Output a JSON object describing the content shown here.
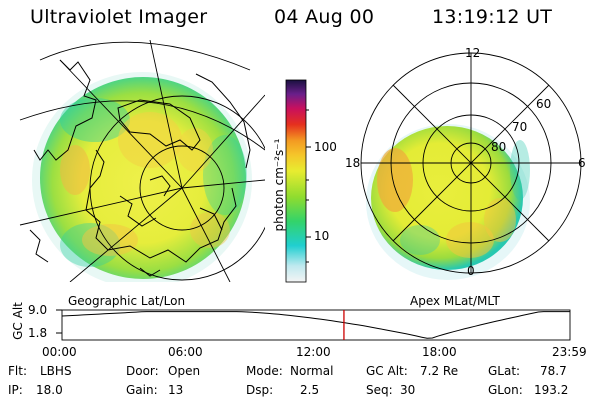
{
  "header": {
    "title": "Ultraviolet Imager",
    "date": "04 Aug 00",
    "time": "13:19:12 UT"
  },
  "colorbar": {
    "unit_label": "photon cm⁻²s⁻¹",
    "ticks": [
      "100",
      "10"
    ]
  },
  "left_panel": {
    "caption": "Geographic Lat/Lon"
  },
  "right_panel": {
    "caption": "Apex MLat/MLT",
    "mlt_labels": {
      "top": "12",
      "bottom": "0",
      "left": "18",
      "right": "6"
    },
    "lat_labels": [
      "60",
      "70",
      "80"
    ]
  },
  "orbit": {
    "ylabel": "GC Alt",
    "y_ticks": [
      "9.0",
      "1.8"
    ],
    "x_ticks": [
      "00:00",
      "06:00",
      "12:00",
      "18:00",
      "23:59"
    ],
    "current_time_hours": 13.32
  },
  "info": {
    "flt_label": "Flt:",
    "flt": "LBHS",
    "ip_label": "IP:",
    "ip": "18.0",
    "door_label": "Door:",
    "door": "Open",
    "gain_label": "Gain:",
    "gain": "13",
    "mode_label": "Mode:",
    "mode": "Normal",
    "dsp_label": "Dsp:",
    "dsp": "2.5",
    "gcalt_label": "GC Alt:",
    "gcalt": "7.2 Re",
    "seq_label": "Seq:",
    "seq": "30",
    "glat_label": "GLat:",
    "glat": "78.7",
    "glon_label": "GLon:",
    "glon": "193.2"
  },
  "colors": {
    "auroral_yellow": "#e8ee3a",
    "auroral_green": "#8fdc3c",
    "auroral_teal": "#2ecf9a",
    "auroral_orange": "#f3b63a",
    "marker_red": "#cc0000"
  }
}
